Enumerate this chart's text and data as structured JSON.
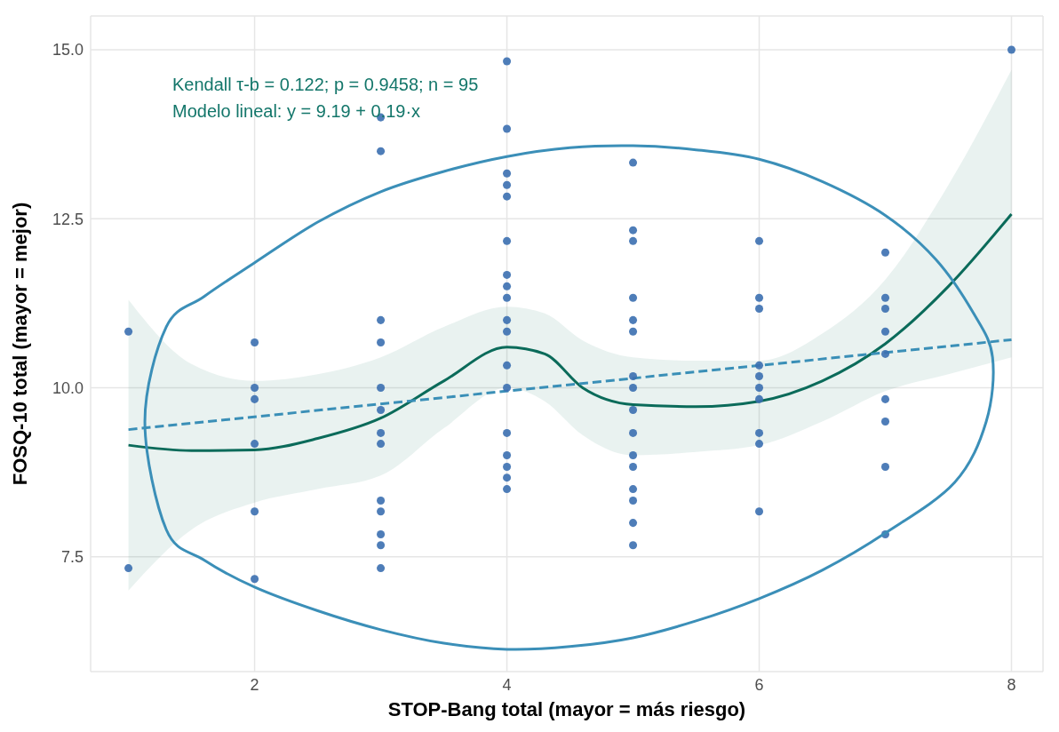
{
  "chart_data": {
    "type": "scatter",
    "xlabel": "STOP-Bang total (mayor = más riesgo)",
    "ylabel": "FOSQ-10 total (mayor = mejor)",
    "annotations": [
      "Kendall τ-b = 0.122; p = 0.9458; n = 95",
      "Modelo lineal: y = 9.19 + 0.19·x"
    ],
    "xlim": [
      0.7,
      8.25
    ],
    "xticks": [
      2,
      4,
      6,
      8
    ],
    "ylim": [
      5.8,
      15.5
    ],
    "yticks": [
      {
        "value": 7.5,
        "label": "7.5"
      },
      {
        "value": 10,
        "label": "10.0"
      },
      {
        "value": 12.5,
        "label": "12.5"
      },
      {
        "value": 15,
        "label": "15.0"
      }
    ],
    "grid": true,
    "legend": false,
    "series": [
      {
        "type": "line",
        "color": "#0b6b5a",
        "marker": "none",
        "x": [
          1,
          1.5,
          2,
          2.5,
          3,
          3.5,
          4,
          4.3,
          4.6,
          5,
          5.5,
          6,
          6.5,
          7,
          7.5,
          8
        ],
        "values": [
          9.15,
          9.07,
          9.08,
          9.25,
          9.55,
          10.1,
          10.6,
          10.5,
          10.0,
          9.75,
          9.72,
          9.8,
          10.1,
          10.65,
          11.5,
          12.57
        ],
        "lower": [
          7.0,
          7.9,
          8.3,
          8.5,
          8.7,
          9.4,
          10.0,
          9.8,
          9.3,
          9.0,
          9.05,
          9.15,
          9.5,
          9.95,
          10.2,
          10.45
        ],
        "upper": [
          11.3,
          10.35,
          10.1,
          10.2,
          10.45,
          10.9,
          11.2,
          11.1,
          10.7,
          10.45,
          10.4,
          10.4,
          10.8,
          11.6,
          13.0,
          14.7
        ]
      },
      {
        "type": "line",
        "color": "#3a8fb7",
        "line_style": "dashed",
        "marker": "none",
        "x": [
          1,
          8
        ],
        "values": [
          9.38,
          10.71
        ]
      },
      {
        "color": "#3b6fb0",
        "marker": "circle",
        "x": [
          1,
          1,
          2,
          2,
          2,
          2,
          2,
          2,
          3,
          3,
          3,
          3,
          3,
          3,
          3,
          3,
          3,
          3,
          3,
          3,
          3,
          4,
          4,
          4,
          4,
          4,
          4,
          4,
          4,
          4,
          4,
          4,
          4,
          4,
          4,
          4,
          4,
          4,
          4,
          5,
          5,
          5,
          5,
          5,
          5,
          5,
          5,
          5,
          5,
          5,
          5,
          5,
          5,
          5,
          5,
          6,
          6,
          6,
          6,
          6,
          6,
          6,
          6,
          6,
          6,
          7,
          7,
          7,
          7,
          7,
          7,
          7,
          7,
          7,
          8
        ],
        "values": [
          10.83,
          7.33,
          10.67,
          10,
          9.83,
          9.17,
          8.17,
          7.17,
          14,
          13.5,
          11,
          10.67,
          10,
          9.67,
          9.33,
          9.17,
          8.33,
          8.17,
          7.83,
          7.67,
          7.33,
          14.83,
          13.83,
          13.17,
          13,
          12.83,
          12.17,
          11.67,
          11.5,
          11.33,
          11,
          10.83,
          10.33,
          10,
          9.33,
          9,
          8.83,
          8.67,
          8.5,
          13.33,
          12.33,
          12.17,
          11.33,
          11,
          10.83,
          10.17,
          10,
          9.67,
          9.33,
          9,
          8.83,
          8.5,
          8.33,
          8,
          7.67,
          12.17,
          11.33,
          11.17,
          10.33,
          10.17,
          10,
          9.83,
          9.33,
          9.17,
          8.17,
          12,
          11.33,
          11.17,
          10.83,
          10.5,
          9.83,
          9.5,
          8.83,
          7.83,
          15
        ]
      }
    ]
  }
}
